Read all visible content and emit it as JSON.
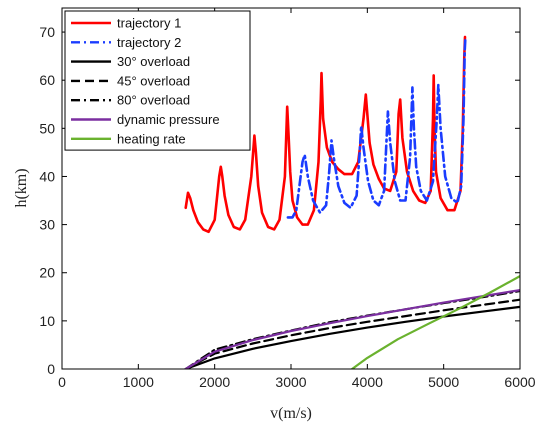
{
  "chart_data": {
    "type": "line",
    "title": "",
    "xlabel": "v(m/s)",
    "ylabel": "h(km)",
    "xlim": [
      0,
      6000
    ],
    "ylim": [
      0,
      75
    ],
    "xticks": [
      0,
      1000,
      2000,
      3000,
      4000,
      5000,
      6000
    ],
    "yticks": [
      0,
      10,
      20,
      30,
      40,
      50,
      60,
      70
    ],
    "grid": false,
    "legend_position": "top-left",
    "series": [
      {
        "name": "trajectory 1",
        "color": "#ff0000",
        "dash": "solid",
        "x": [
          1620,
          1650,
          1680,
          1720,
          1780,
          1850,
          1920,
          2000,
          2060,
          2080,
          2100,
          2130,
          2180,
          2250,
          2330,
          2400,
          2480,
          2520,
          2540,
          2570,
          2620,
          2700,
          2780,
          2850,
          2920,
          2950,
          2970,
          2990,
          3020,
          3080,
          3150,
          3220,
          3300,
          3360,
          3390,
          3400,
          3420,
          3470,
          3540,
          3620,
          3700,
          3800,
          3880,
          3950,
          3980,
          4000,
          4030,
          4080,
          4150,
          4220,
          4300,
          4380,
          4410,
          4430,
          4460,
          4520,
          4600,
          4680,
          4760,
          4830,
          4860,
          4870,
          4880,
          4900,
          4960,
          5050,
          5140,
          5220,
          5250,
          5270,
          5280
        ],
        "y": [
          33.5,
          36.6,
          35.5,
          33,
          30.5,
          29,
          28.5,
          31,
          40,
          42,
          40,
          36,
          32,
          29.5,
          29,
          31,
          40,
          48.5,
          45,
          38,
          32.5,
          29.5,
          29,
          31,
          40,
          54.5,
          48,
          41,
          35,
          31.5,
          30,
          30,
          33,
          43,
          56,
          61.5,
          52,
          46,
          43,
          41.5,
          40.5,
          40.5,
          43,
          52,
          57,
          53,
          47,
          42.5,
          39.5,
          37.5,
          37,
          41,
          53,
          56,
          48,
          41,
          37,
          35,
          34.5,
          37,
          52,
          61,
          50,
          41,
          35.5,
          33,
          33,
          37,
          50,
          65,
          69
        ]
      },
      {
        "name": "trajectory 2",
        "color": "#1a3cff",
        "dash": "dashdot",
        "x": [
          2960,
          3020,
          3070,
          3110,
          3150,
          3180,
          3220,
          3290,
          3380,
          3460,
          3500,
          3530,
          3560,
          3620,
          3700,
          3780,
          3860,
          3900,
          3920,
          3950,
          4010,
          4080,
          4150,
          4220,
          4250,
          4270,
          4300,
          4360,
          4430,
          4500,
          4560,
          4590,
          4610,
          4640,
          4700,
          4780,
          4860,
          4910,
          4930,
          4960,
          5020,
          5100,
          5180,
          5230,
          5260,
          5275,
          5285
        ],
        "y": [
          31.5,
          31.5,
          33,
          38,
          43,
          44.5,
          40,
          35,
          32.5,
          34,
          41,
          47.5,
          44,
          38,
          34.5,
          33.5,
          36,
          45,
          50.5,
          46,
          39,
          35,
          34,
          37,
          47,
          53.5,
          47,
          39,
          35,
          35,
          44,
          58.5,
          50,
          42,
          37,
          35,
          39,
          52,
          59,
          50,
          40,
          35.5,
          34.5,
          38,
          52,
          66,
          69
        ]
      },
      {
        "name": "30° overload",
        "color": "#000000",
        "dash": "solid",
        "x": [
          1620,
          2000,
          2500,
          3000,
          3500,
          4000,
          4500,
          5000,
          5500,
          6000
        ],
        "y": [
          0,
          2.2,
          4.2,
          5.8,
          7.3,
          8.6,
          9.8,
          10.9,
          11.9,
          12.9
        ]
      },
      {
        "name": "45° overload",
        "color": "#000000",
        "dash": "dashed",
        "x": [
          1620,
          2000,
          2500,
          3000,
          3500,
          4000,
          4500,
          5000,
          5500,
          6000
        ],
        "y": [
          0,
          3.2,
          5.3,
          7.0,
          8.5,
          9.8,
          11.0,
          12.2,
          13.3,
          14.4
        ]
      },
      {
        "name": "80° overload",
        "color": "#000000",
        "dash": "dashdot",
        "x": [
          1620,
          2000,
          2500,
          3000,
          3500,
          4000,
          4500,
          5000,
          5500,
          6000
        ],
        "y": [
          0,
          4.0,
          6.2,
          8.0,
          9.7,
          11.1,
          12.4,
          13.7,
          14.9,
          16.2
        ]
      },
      {
        "name": "dynamic pressure",
        "color": "#7b2fa0",
        "dash": "solid",
        "x": [
          1620,
          2000,
          2500,
          3000,
          3500,
          4000,
          4500,
          5000,
          5500,
          6000
        ],
        "y": [
          0,
          3.6,
          6.0,
          7.9,
          9.5,
          11.0,
          12.4,
          13.8,
          15.1,
          16.4
        ]
      },
      {
        "name": "heating rate",
        "color": "#6ab22e",
        "dash": "solid",
        "x": [
          3800,
          4000,
          4400,
          4800,
          5200,
          5600,
          6000
        ],
        "y": [
          0,
          2.3,
          6.2,
          9.4,
          12.5,
          15.8,
          19.3
        ]
      }
    ]
  }
}
